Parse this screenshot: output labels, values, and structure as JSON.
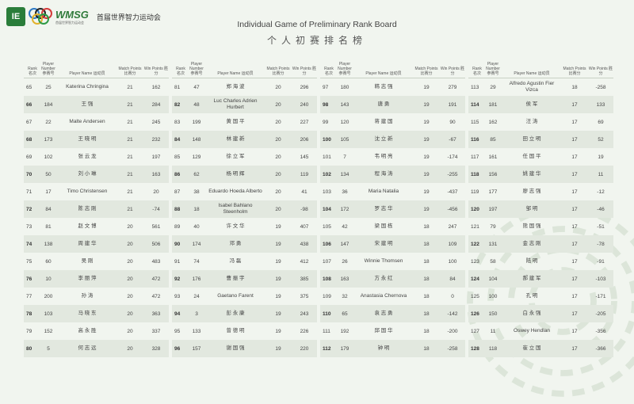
{
  "header": {
    "logo_badge": "IE",
    "logo_text": "WMSG",
    "logo_tagline": "首届世界智力运动会",
    "org": "首届世界智力运动会"
  },
  "title": "Individual Game of Preliminary Rank Board",
  "subtitle": "个人初赛排名榜",
  "columns": {
    "rank": "Rank 名次",
    "player_number": "Player Number 参赛号",
    "player_name": "Player Name 运动员",
    "match_points": "Match Points 比赛分",
    "win_points": "Win Points 胜分"
  },
  "rows": [
    [
      {
        "rank": "65",
        "num": "25",
        "name": "Katerina Chringina",
        "mp": "21",
        "wp": "162"
      },
      {
        "rank": "66",
        "num": "184",
        "name": "王 强",
        "mp": "21",
        "wp": "284"
      },
      {
        "rank": "67",
        "num": "22",
        "name": "Malte Andersen",
        "mp": "21",
        "wp": "245"
      },
      {
        "rank": "68",
        "num": "173",
        "name": "王 晓 明",
        "mp": "21",
        "wp": "232"
      },
      {
        "rank": "69",
        "num": "102",
        "name": "张 云 龙",
        "mp": "21",
        "wp": "197"
      },
      {
        "rank": "70",
        "num": "50",
        "name": "刘 小 琳",
        "mp": "21",
        "wp": "163"
      },
      {
        "rank": "71",
        "num": "17",
        "name": "Timo Christensen",
        "mp": "21",
        "wp": "20"
      },
      {
        "rank": "72",
        "num": "84",
        "name": "陈 志 刚",
        "mp": "21",
        "wp": "-74"
      },
      {
        "rank": "73",
        "num": "81",
        "name": "赵 文 博",
        "mp": "20",
        "wp": "561"
      },
      {
        "rank": "74",
        "num": "138",
        "name": "周 建 华",
        "mp": "20",
        "wp": "506"
      },
      {
        "rank": "75",
        "num": "60",
        "name": "吴 刚",
        "mp": "20",
        "wp": "483"
      },
      {
        "rank": "76",
        "num": "10",
        "name": "李 丽 萍",
        "mp": "20",
        "wp": "472"
      },
      {
        "rank": "77",
        "num": "200",
        "name": "孙 涛",
        "mp": "20",
        "wp": "472"
      },
      {
        "rank": "78",
        "num": "103",
        "name": "马 晓 东",
        "mp": "20",
        "wp": "363"
      },
      {
        "rank": "79",
        "num": "152",
        "name": "高 永 胜",
        "mp": "20",
        "wp": "337"
      },
      {
        "rank": "80",
        "num": "5",
        "name": "何 志 远",
        "mp": "20",
        "wp": "328"
      }
    ],
    [
      {
        "rank": "81",
        "num": "47",
        "name": "郑 海 波",
        "mp": "20",
        "wp": "296"
      },
      {
        "rank": "82",
        "num": "48",
        "name": "Luc Charles Adrien Hurbert",
        "mp": "20",
        "wp": "240"
      },
      {
        "rank": "83",
        "num": "199",
        "name": "黄 国 平",
        "mp": "20",
        "wp": "227"
      },
      {
        "rank": "84",
        "num": "148",
        "name": "林 建 新",
        "mp": "20",
        "wp": "206"
      },
      {
        "rank": "85",
        "num": "129",
        "name": "徐 立 军",
        "mp": "20",
        "wp": "145"
      },
      {
        "rank": "86",
        "num": "62",
        "name": "杨 明 辉",
        "mp": "20",
        "wp": "119"
      },
      {
        "rank": "87",
        "num": "38",
        "name": "Eduardo Hoeda Alberto",
        "mp": "20",
        "wp": "41"
      },
      {
        "rank": "88",
        "num": "18",
        "name": "Isabel Bahlano Steenholm",
        "mp": "20",
        "wp": "-98"
      },
      {
        "rank": "89",
        "num": "40",
        "name": "许 文 华",
        "mp": "19",
        "wp": "407"
      },
      {
        "rank": "90",
        "num": "174",
        "name": "邓 勇",
        "mp": "19",
        "wp": "438"
      },
      {
        "rank": "91",
        "num": "74",
        "name": "冯 磊",
        "mp": "19",
        "wp": "412"
      },
      {
        "rank": "92",
        "num": "176",
        "name": "曹 振 宇",
        "mp": "19",
        "wp": "385"
      },
      {
        "rank": "93",
        "num": "24",
        "name": "Gaetano Farent",
        "mp": "19",
        "wp": "375"
      },
      {
        "rank": "94",
        "num": "3",
        "name": "彭 永 康",
        "mp": "19",
        "wp": "243"
      },
      {
        "rank": "95",
        "num": "133",
        "name": "曾 德 明",
        "mp": "19",
        "wp": "226"
      },
      {
        "rank": "96",
        "num": "157",
        "name": "谢 国 强",
        "mp": "19",
        "wp": "220"
      }
    ],
    [
      {
        "rank": "97",
        "num": "180",
        "name": "韩 志 强",
        "mp": "19",
        "wp": "279"
      },
      {
        "rank": "98",
        "num": "143",
        "name": "唐 勇",
        "mp": "19",
        "wp": "191"
      },
      {
        "rank": "99",
        "num": "120",
        "name": "蒋 建 国",
        "mp": "19",
        "wp": "90"
      },
      {
        "rank": "100",
        "num": "105",
        "name": "沈 立 新",
        "mp": "19",
        "wp": "-67"
      },
      {
        "rank": "101",
        "num": "7",
        "name": "韦 明 亮",
        "mp": "19",
        "wp": "-174"
      },
      {
        "rank": "102",
        "num": "134",
        "name": "程 海 涛",
        "mp": "19",
        "wp": "-255"
      },
      {
        "rank": "103",
        "num": "36",
        "name": "Maria Natalia",
        "mp": "19",
        "wp": "-437"
      },
      {
        "rank": "104",
        "num": "172",
        "name": "罗 志 华",
        "mp": "19",
        "wp": "-456"
      },
      {
        "rank": "105",
        "num": "42",
        "name": "梁 国 栋",
        "mp": "18",
        "wp": "247"
      },
      {
        "rank": "106",
        "num": "147",
        "name": "宋 建 明",
        "mp": "18",
        "wp": "109"
      },
      {
        "rank": "107",
        "num": "26",
        "name": "Winnie Thomsen",
        "mp": "18",
        "wp": "100"
      },
      {
        "rank": "108",
        "num": "163",
        "name": "方 永 红",
        "mp": "18",
        "wp": "84"
      },
      {
        "rank": "109",
        "num": "32",
        "name": "Anastasia Chernova",
        "mp": "18",
        "wp": "0"
      },
      {
        "rank": "110",
        "num": "65",
        "name": "袁 志 勇",
        "mp": "18",
        "wp": "-142"
      },
      {
        "rank": "111",
        "num": "192",
        "name": "邱 国 华",
        "mp": "18",
        "wp": "-200"
      },
      {
        "rank": "112",
        "num": "179",
        "name": "钟 明",
        "mp": "18",
        "wp": "-258"
      }
    ],
    [
      {
        "rank": "113",
        "num": "29",
        "name": "Alfredo Agustin Fier Vizca",
        "mp": "18",
        "wp": "-258"
      },
      {
        "rank": "114",
        "num": "181",
        "name": "侯 军",
        "mp": "17",
        "wp": "133"
      },
      {
        "rank": "115",
        "num": "162",
        "name": "汪 涛",
        "mp": "17",
        "wp": "69"
      },
      {
        "rank": "116",
        "num": "85",
        "name": "田 立 明",
        "mp": "17",
        "wp": "52"
      },
      {
        "rank": "117",
        "num": "161",
        "name": "任 国 平",
        "mp": "17",
        "wp": "19"
      },
      {
        "rank": "118",
        "num": "156",
        "name": "姚 建 华",
        "mp": "17",
        "wp": "11"
      },
      {
        "rank": "119",
        "num": "177",
        "name": "廖 志 强",
        "mp": "17",
        "wp": "-12"
      },
      {
        "rank": "120",
        "num": "197",
        "name": "邹 明",
        "mp": "17",
        "wp": "-46"
      },
      {
        "rank": "121",
        "num": "79",
        "name": "熊 国 强",
        "mp": "17",
        "wp": "-51"
      },
      {
        "rank": "122",
        "num": "131",
        "name": "金 志 刚",
        "mp": "17",
        "wp": "-78"
      },
      {
        "rank": "123",
        "num": "58",
        "name": "陆 明",
        "mp": "17",
        "wp": "-91"
      },
      {
        "rank": "124",
        "num": "104",
        "name": "郝 建 军",
        "mp": "17",
        "wp": "-103"
      },
      {
        "rank": "125",
        "num": "100",
        "name": "孔 明",
        "mp": "17",
        "wp": "-171"
      },
      {
        "rank": "126",
        "num": "150",
        "name": "白 永 强",
        "mp": "17",
        "wp": "-205"
      },
      {
        "rank": "127",
        "num": "11",
        "name": "Oswey Hendlan",
        "mp": "17",
        "wp": "-356"
      },
      {
        "rank": "128",
        "num": "118",
        "name": "崔 立 国",
        "mp": "17",
        "wp": "-366"
      }
    ]
  ]
}
